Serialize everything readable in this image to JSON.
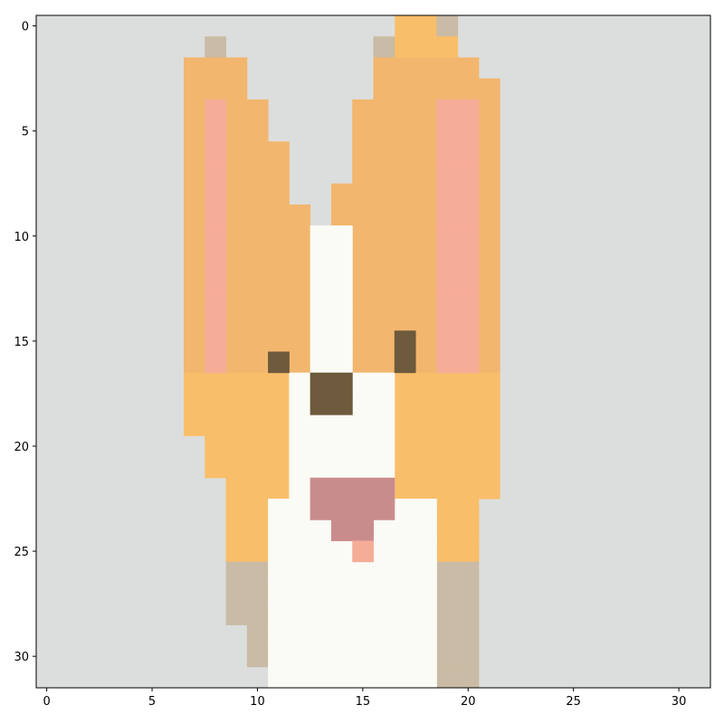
{
  "image_subject": "Low-resolution pixelated image of a fox-like animal with large upright orange ears, shown on a plotted axis grid",
  "grid": {
    "cols": 32,
    "rows": 32
  },
  "x_ticks": [
    {
      "value": 0,
      "label": "0"
    },
    {
      "value": 5,
      "label": "5"
    },
    {
      "value": 10,
      "label": "10"
    },
    {
      "value": 15,
      "label": "15"
    },
    {
      "value": 20,
      "label": "20"
    },
    {
      "value": 25,
      "label": "25"
    },
    {
      "value": 30,
      "label": "30"
    }
  ],
  "y_ticks": [
    {
      "value": 0,
      "label": "0"
    },
    {
      "value": 5,
      "label": "5"
    },
    {
      "value": 10,
      "label": "10"
    },
    {
      "value": 15,
      "label": "15"
    },
    {
      "value": 20,
      "label": "20"
    },
    {
      "value": 25,
      "label": "25"
    },
    {
      "value": 30,
      "label": "30"
    }
  ],
  "colors": {
    "background": "#dcdedd",
    "ear_outer": "#f2b66e",
    "ear_inner": "#f6ad98",
    "fur_orange": "#f9be6a",
    "fur_white": "#fbfbf6",
    "eye_dark": "#6e5a3c",
    "nose_pink": "#c98c8c",
    "shadow": "#c9bba5"
  }
}
